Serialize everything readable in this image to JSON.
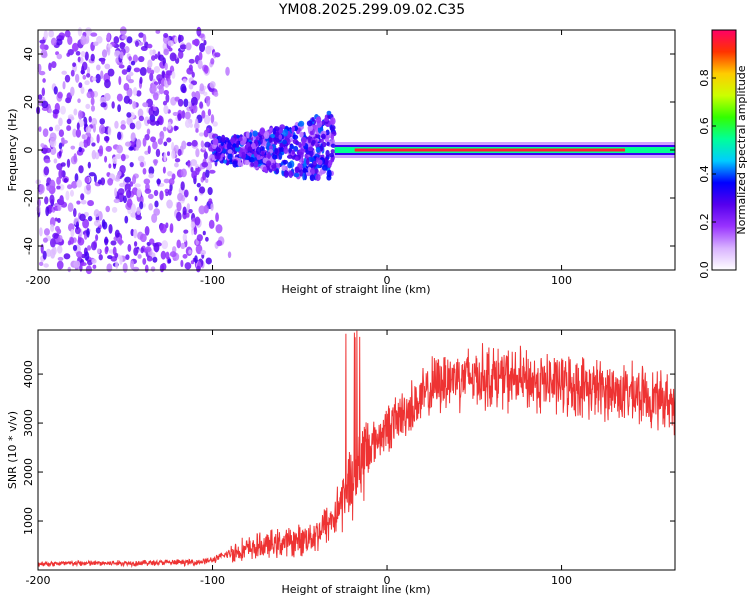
{
  "figure_title": "YM08.2025.299.09.02.C35",
  "chart_data": [
    {
      "type": "heatmap",
      "name": "spectrogram",
      "xlabel": "Height of straight line (km)",
      "ylabel": "Frequency (Hz)",
      "xlim": [
        -200,
        165
      ],
      "ylim": [
        -50,
        50
      ],
      "xticks": [
        -200,
        -100,
        0,
        100
      ],
      "yticks": [
        -40,
        -20,
        0,
        20,
        40
      ],
      "colorbar": {
        "label": "Normalized spectral amplitude",
        "range": [
          0,
          1
        ],
        "ticks": [
          0.0,
          0.2,
          0.4,
          0.6,
          0.8
        ],
        "colors": [
          "#ffffff",
          "#d9b3ff",
          "#9933ff",
          "#5500ee",
          "#0000ff",
          "#00ccff",
          "#00ff99",
          "#33ff00",
          "#ccff00",
          "#ffcc00",
          "#ff3300",
          "#ff0066"
        ]
      },
      "regions": [
        {
          "x_range": [
            -200,
            -100
          ],
          "freq_range": [
            -50,
            50
          ],
          "amplitude": 0.08,
          "description": "broadband noise"
        },
        {
          "x_range": [
            -100,
            -30
          ],
          "freq_range": [
            -15,
            15
          ],
          "amplitude": 0.25
        },
        {
          "x_range": [
            -30,
            165
          ],
          "freq_range": [
            -3,
            3
          ],
          "amplitude": 0.95,
          "center_freq": 0
        }
      ]
    },
    {
      "type": "line",
      "name": "snr",
      "xlabel": "Height of straight line (km)",
      "ylabel": "SNR (10 * v/v)",
      "xlim": [
        -200,
        165
      ],
      "ylim": [
        0,
        4900
      ],
      "xticks": [
        -200,
        -100,
        0,
        100
      ],
      "yticks": [
        1000,
        2000,
        3000,
        4000
      ],
      "color": "#ee3333",
      "series": [
        {
          "name": "SNR",
          "x": [
            -200,
            -150,
            -110,
            -100,
            -90,
            -70,
            -50,
            -40,
            -30,
            -25,
            -20,
            -10,
            0,
            10,
            20,
            30,
            40,
            60,
            80,
            100,
            120,
            140,
            160,
            165
          ],
          "values": [
            130,
            140,
            160,
            200,
            350,
            500,
            600,
            750,
            1100,
            1500,
            1900,
            2500,
            2900,
            3200,
            3500,
            3850,
            3950,
            3950,
            3850,
            3800,
            3700,
            3600,
            3450,
            3400
          ]
        }
      ]
    }
  ]
}
